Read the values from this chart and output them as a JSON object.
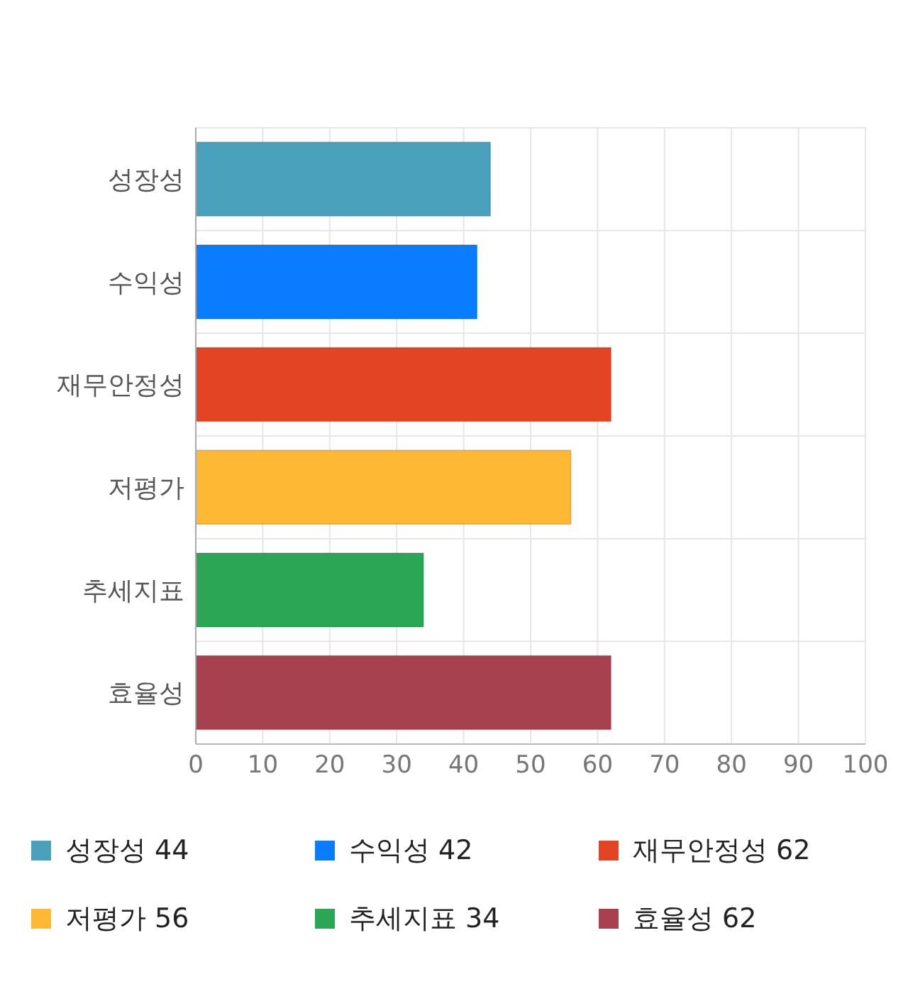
{
  "chart_data": {
    "type": "bar",
    "orientation": "horizontal",
    "stacked": true,
    "categories": [
      "성장성",
      "수익성",
      "재무안정성",
      "저평가",
      "추세지표",
      "효율성"
    ],
    "series": [
      {
        "name": "성장성 44",
        "color": "#4aa1bb",
        "values": [
          44,
          null,
          null,
          null,
          null,
          null
        ]
      },
      {
        "name": "수익성 42",
        "color": "#0a7cff",
        "values": [
          null,
          42,
          null,
          null,
          null,
          null
        ]
      },
      {
        "name": "재무안정성 62",
        "color": "#e24424",
        "values": [
          null,
          null,
          62,
          null,
          null,
          null
        ]
      },
      {
        "name": "저평가 56",
        "color": "#ffb833",
        "values": [
          null,
          null,
          null,
          56,
          null,
          null
        ]
      },
      {
        "name": "추세지표 34",
        "color": "#2aa655",
        "values": [
          null,
          null,
          null,
          null,
          34,
          null
        ]
      },
      {
        "name": "효율성 62",
        "color": "#a8414f",
        "values": [
          null,
          null,
          null,
          null,
          null,
          62
        ]
      }
    ],
    "xlim": [
      0,
      100
    ],
    "xticks": [
      0,
      10,
      20,
      30,
      40,
      50,
      60,
      70,
      80,
      90,
      100
    ],
    "grid": true,
    "legend": "bottom"
  }
}
